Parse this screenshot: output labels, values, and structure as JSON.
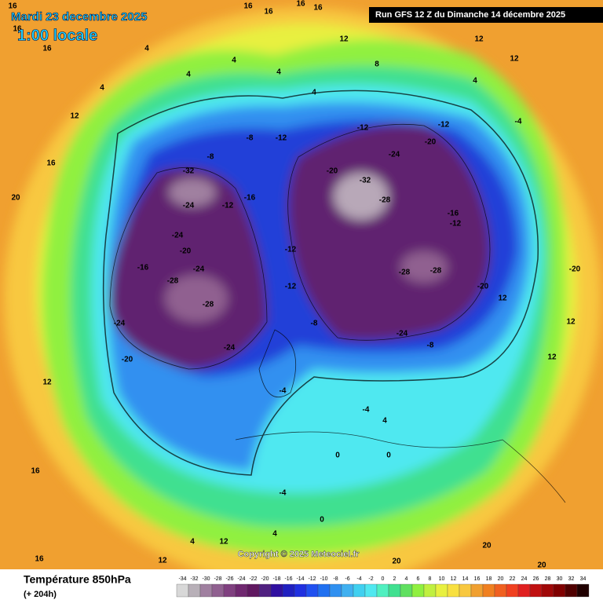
{
  "header": {
    "date": "Mardi 23 decembre 2025",
    "time": "1:00 locale",
    "run": "Run GFS 12 Z du Dimanche 14 décembre 2025"
  },
  "copyright": "Copyright © 2025 Meteociel.fr",
  "legend": {
    "title": "Température 850hPa",
    "subtitle": "(+ 204h)",
    "stops": [
      -34,
      -32,
      -30,
      -28,
      -26,
      -24,
      -22,
      -20,
      -18,
      -16,
      -14,
      -12,
      -10,
      -8,
      -6,
      -4,
      -2,
      0,
      2,
      4,
      6,
      8,
      10,
      12,
      14,
      16,
      18,
      20,
      22,
      24,
      26,
      28,
      30,
      32,
      34
    ],
    "colors": [
      "#d8d8d8",
      "#b8b0b8",
      "#a080a0",
      "#906090",
      "#804080",
      "#702870",
      "#601860",
      "#502080",
      "#3010a0",
      "#2020c0",
      "#2030e0",
      "#2050f0",
      "#2070f0",
      "#3090f0",
      "#40b0f0",
      "#40d0f0",
      "#50e8f0",
      "#50f0c0",
      "#40e090",
      "#60e060",
      "#90f040",
      "#c0f040",
      "#e8f040",
      "#f8e040",
      "#f8c840",
      "#f0a030",
      "#f08020",
      "#f06020",
      "#f04020",
      "#e02020",
      "#c01010",
      "#a00808",
      "#800000",
      "#500000",
      "#200000"
    ]
  },
  "map_labels": [
    16,
    16,
    16,
    16,
    16,
    16,
    16,
    12,
    8,
    12,
    12,
    4,
    4,
    4,
    4,
    4,
    12,
    16,
    20,
    -4,
    -8,
    -12,
    -12,
    -12,
    -20,
    -8,
    -32,
    -24,
    -12,
    -16,
    -20,
    -24,
    -32,
    -28,
    -24,
    -20,
    -16,
    -24,
    -28,
    -28,
    -24,
    -20,
    -24,
    -12,
    -12,
    -28,
    -28,
    -16,
    -12,
    -24,
    -20,
    -8,
    -8,
    -4,
    -4,
    4,
    0,
    0,
    -4,
    0,
    12,
    12,
    12,
    -20,
    12,
    16,
    4,
    12,
    4,
    20,
    20,
    20,
    12,
    16,
    4,
    4
  ]
}
